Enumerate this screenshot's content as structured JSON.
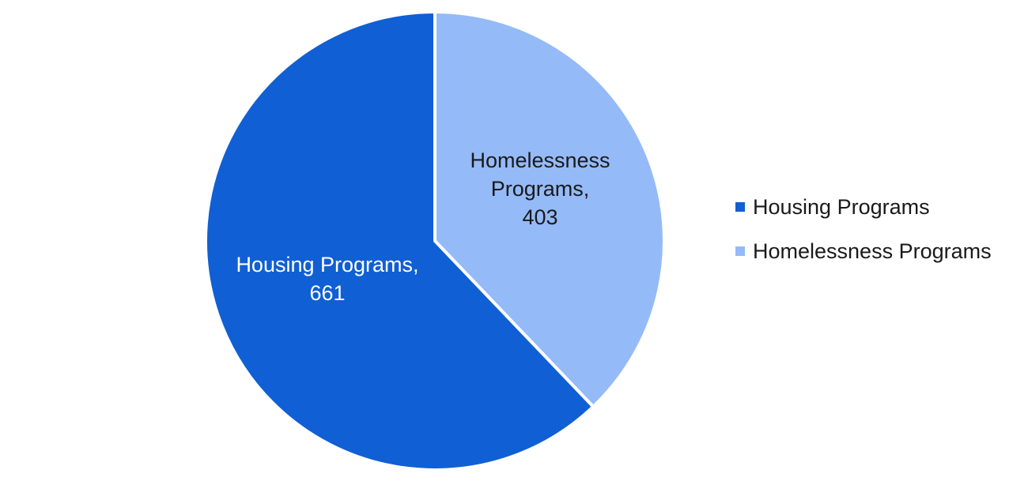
{
  "chart_data": {
    "type": "pie",
    "categories": [
      "Housing Programs",
      "Homelessness Programs"
    ],
    "values": [
      661,
      403
    ],
    "colors": [
      "#105FD4",
      "#95BAF8"
    ],
    "data_labels": [
      {
        "lines": [
          "Housing Programs,",
          "661"
        ],
        "color": "#ffffff"
      },
      {
        "lines": [
          "Homelessness",
          "Programs,",
          "403"
        ],
        "color": "#1a1a1a"
      }
    ],
    "legend": {
      "placement": "right",
      "entries": [
        "Housing Programs",
        "Homelessness Programs"
      ]
    }
  }
}
